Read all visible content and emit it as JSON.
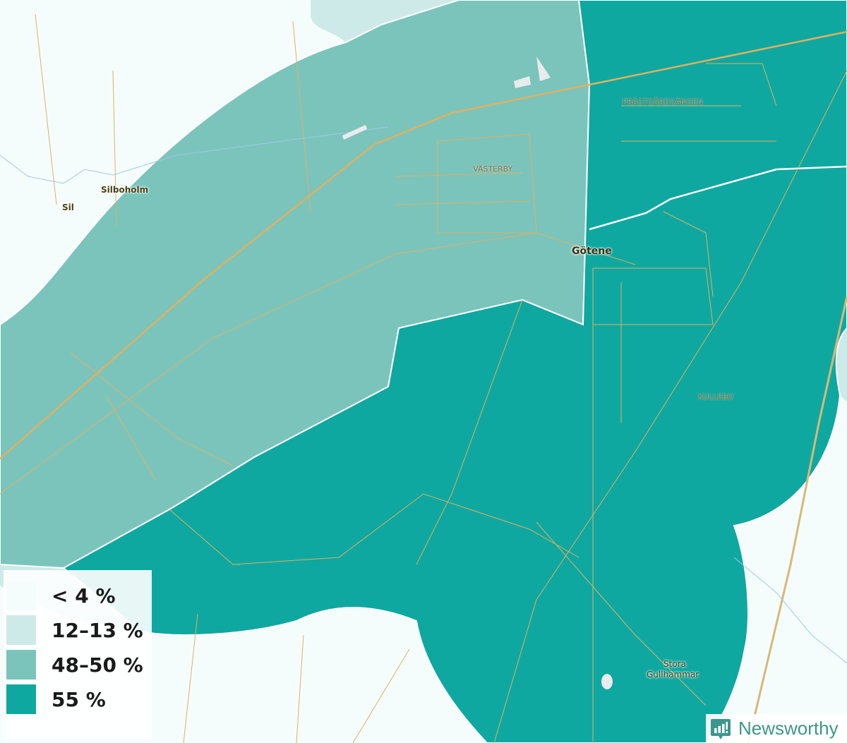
{
  "map": {
    "labels": {
      "silboholm": "Silboholm",
      "sil": "Sil",
      "vasterby": "VÄSTERBY",
      "prastgardsangen": "PRÄSTGÅRDSÄNGEN",
      "gotene": "Götene",
      "kullebo": "KULLEBO",
      "stora_gullhammar_1": "Stora",
      "stora_gullhammar_2": "Gullhammar"
    },
    "colors": {
      "background": "#f5fdfc",
      "bin_1": "#f5fdfc",
      "bin_2": "#cdeae8",
      "bin_3": "#7bc4bc",
      "bin_4": "#0ea8a0",
      "roads": "#e0b060"
    }
  },
  "legend": {
    "items": [
      {
        "label": "< 4 %",
        "color": "#f5fdfc"
      },
      {
        "label": "12–13 %",
        "color": "#cdeae8"
      },
      {
        "label": "48–50 %",
        "color": "#7bc4bc"
      },
      {
        "label": "55 %",
        "color": "#0ea8a0"
      }
    ]
  },
  "branding": {
    "name": "Newsworthy",
    "icon": "bar-chart-speech-bubble-icon"
  }
}
